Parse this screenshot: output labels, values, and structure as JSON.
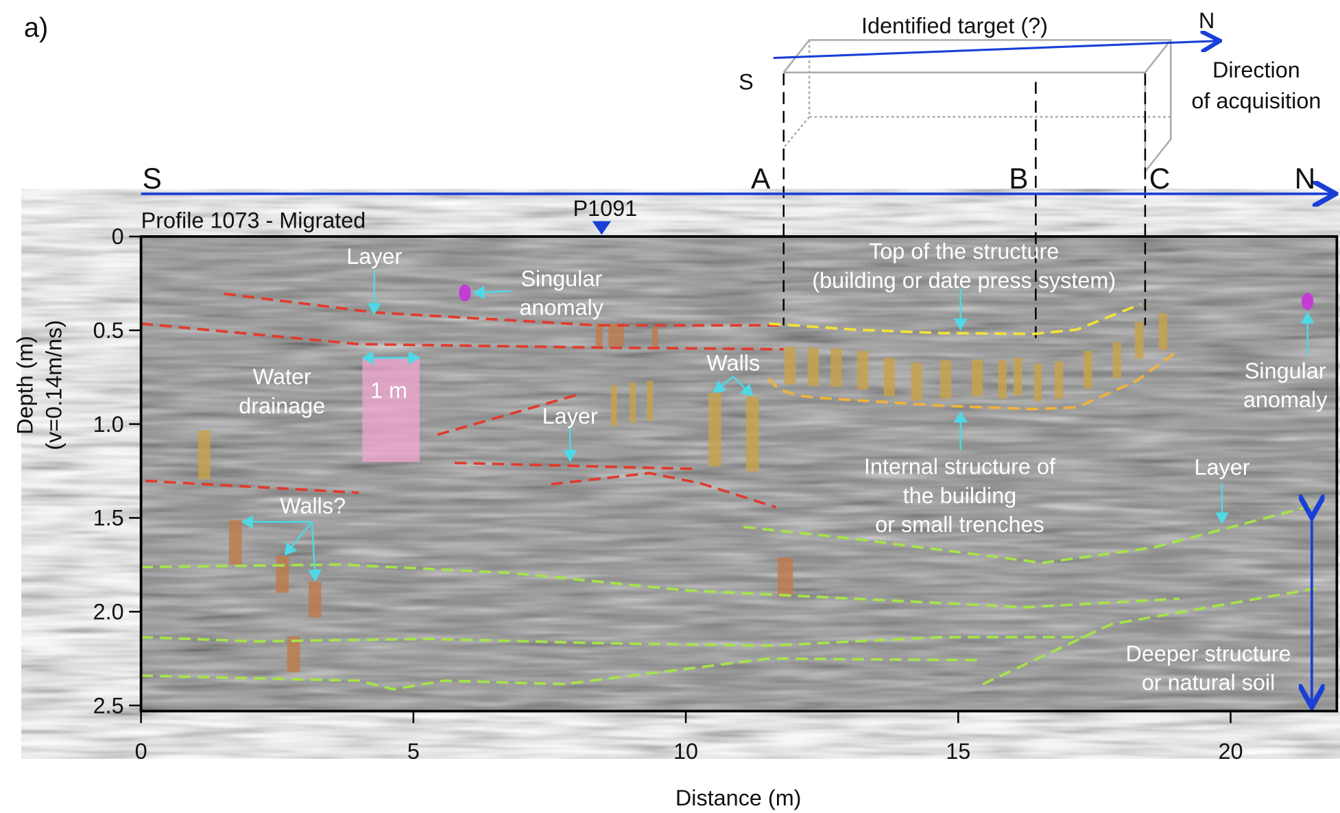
{
  "chart_data": {
    "type": "radargram",
    "panel_label": "a)",
    "title": "Profile 1073 - Migrated",
    "x_label": "Distance (m)",
    "y_label": [
      "Depth (m)",
      "(v=0.14m/ns)"
    ],
    "xlim": [
      0,
      21.95
    ],
    "ylim": [
      0,
      2.53
    ],
    "xticks": [
      0,
      5,
      10,
      15,
      20
    ],
    "yticks": [
      0,
      0.5,
      {
        "value": 1,
        "label": "1.0"
      },
      1.5,
      {
        "value": 2,
        "label": "2.0"
      },
      2.5
    ],
    "profile_marks": [
      "S",
      "A",
      "B",
      "C",
      "N"
    ],
    "crossing_profile": "P1091",
    "target_sketch": {
      "title": "Identified target (?)",
      "north": "N",
      "south": "S",
      "direction": [
        "Direction",
        "of acquisition"
      ]
    },
    "annotations": [
      {
        "lines": [
          "Layer"
        ]
      },
      {
        "lines": [
          "Singular",
          "anomaly"
        ]
      },
      {
        "lines": [
          "Water",
          "drainage"
        ]
      },
      {
        "lines": [
          "1 m"
        ]
      },
      {
        "lines": [
          "Layer"
        ]
      },
      {
        "lines": [
          "Walls"
        ]
      },
      {
        "lines": [
          "Top of the structure",
          "(building or date press system)"
        ]
      },
      {
        "lines": [
          "Internal structure of",
          "the building",
          "or small trenches"
        ]
      },
      {
        "lines": [
          "Walls?"
        ]
      },
      {
        "lines": [
          "Layer"
        ]
      },
      {
        "lines": [
          "Singular",
          "anomaly"
        ]
      },
      {
        "lines": [
          "Deeper structure",
          "or natural soil"
        ]
      }
    ]
  }
}
